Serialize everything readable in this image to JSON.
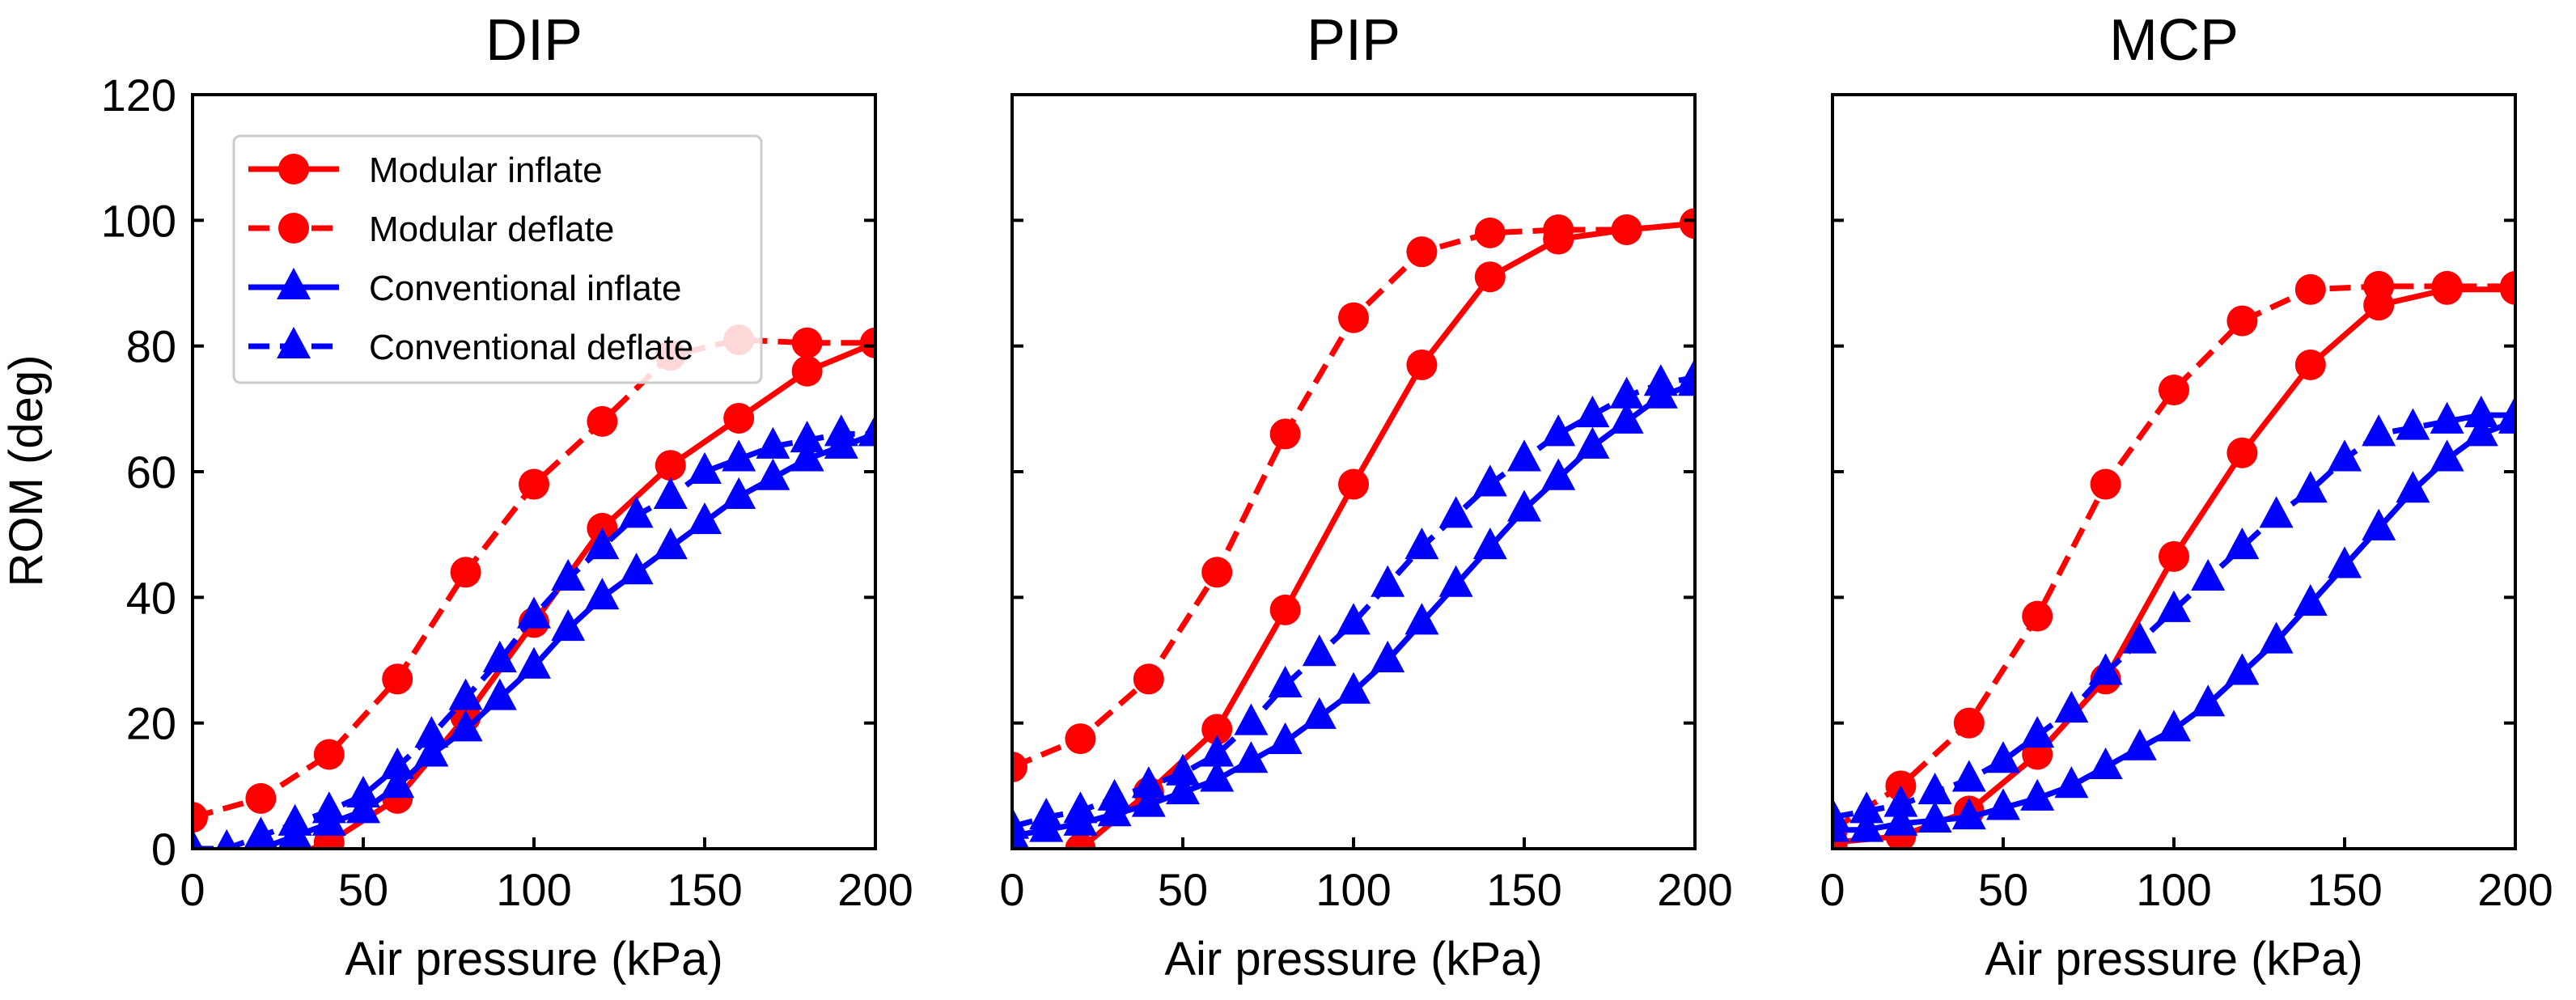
{
  "figure": {
    "ylabel": "ROM (deg)",
    "legend": {
      "placement": "upper-left of first panel",
      "entries": [
        {
          "label": "Modular inflate",
          "color": "#ff0000",
          "marker": "circle",
          "dashed": false
        },
        {
          "label": "Modular deflate",
          "color": "#ff0000",
          "marker": "circle",
          "dashed": true
        },
        {
          "label": "Conventional inflate",
          "color": "#0000ff",
          "marker": "triangle",
          "dashed": false
        },
        {
          "label": "Conventional deflate",
          "color": "#0000ff",
          "marker": "triangle",
          "dashed": true
        }
      ]
    }
  },
  "chart_data": [
    {
      "type": "line",
      "title": "DIP",
      "xlabel": "Air pressure (kPa)",
      "ylabel": "ROM (deg)",
      "xlim": [
        0,
        200
      ],
      "ylim": [
        0,
        120
      ],
      "xticks": [
        0,
        50,
        100,
        150,
        200
      ],
      "yticks": [
        0,
        20,
        40,
        60,
        80,
        100,
        120
      ],
      "grid": false,
      "legend": true,
      "series": [
        {
          "name": "Modular inflate",
          "color": "#ff0000",
          "marker": "circle",
          "dashed": false,
          "x": [
            0,
            20,
            40,
            60,
            80,
            100,
            120,
            140,
            160,
            180,
            200
          ],
          "y": [
            -2,
            -3,
            1,
            8,
            21,
            36,
            51,
            61,
            68.5,
            76,
            80.5
          ]
        },
        {
          "name": "Modular deflate",
          "color": "#ff0000",
          "marker": "circle",
          "dashed": true,
          "x": [
            0,
            20,
            40,
            60,
            80,
            100,
            120,
            140,
            160,
            180,
            200
          ],
          "y": [
            5,
            8,
            15,
            27,
            44,
            58,
            68,
            78.5,
            81,
            80.5,
            80.5
          ]
        },
        {
          "name": "Conventional inflate",
          "color": "#0000ff",
          "marker": "triangle",
          "dashed": false,
          "x": [
            0,
            10,
            20,
            30,
            40,
            50,
            60,
            70,
            80,
            90,
            100,
            110,
            120,
            130,
            140,
            150,
            160,
            170,
            180,
            190,
            200
          ],
          "y": [
            0,
            -1,
            0,
            2,
            4,
            6,
            10,
            15,
            19,
            24,
            29,
            35,
            40,
            44,
            48,
            52,
            56,
            59,
            62,
            64,
            66
          ]
        },
        {
          "name": "Conventional deflate",
          "color": "#0000ff",
          "marker": "triangle",
          "dashed": true,
          "x": [
            0,
            10,
            20,
            30,
            40,
            50,
            60,
            70,
            80,
            90,
            100,
            110,
            120,
            130,
            140,
            150,
            160,
            170,
            180,
            190,
            200
          ],
          "y": [
            0,
            0,
            2,
            4,
            6,
            8.5,
            13,
            18,
            24,
            30,
            37,
            43,
            48,
            53,
            56,
            60,
            62,
            64,
            65,
            66,
            66
          ]
        }
      ]
    },
    {
      "type": "line",
      "title": "PIP",
      "xlabel": "Air pressure (kPa)",
      "xlim": [
        0,
        200
      ],
      "ylim": [
        0,
        120
      ],
      "xticks": [
        0,
        50,
        100,
        150,
        200
      ],
      "yticks": [
        0,
        20,
        40,
        60,
        80,
        100,
        120
      ],
      "grid": false,
      "legend": false,
      "series": [
        {
          "name": "Modular inflate",
          "color": "#ff0000",
          "marker": "circle",
          "dashed": false,
          "x": [
            0,
            20,
            40,
            60,
            80,
            100,
            120,
            140,
            160,
            180,
            200
          ],
          "y": [
            -1,
            0,
            9,
            19,
            38,
            58,
            77,
            91,
            97,
            98.5,
            99.5
          ]
        },
        {
          "name": "Modular deflate",
          "color": "#ff0000",
          "marker": "circle",
          "dashed": true,
          "x": [
            0,
            20,
            40,
            60,
            80,
            100,
            120,
            140,
            160,
            180,
            200
          ],
          "y": [
            13,
            17.5,
            27,
            44,
            66,
            84.5,
            95,
            98,
            98.5,
            98.5,
            99.5
          ]
        },
        {
          "name": "Conventional inflate",
          "color": "#0000ff",
          "marker": "triangle",
          "dashed": false,
          "x": [
            0,
            10,
            20,
            30,
            40,
            50,
            60,
            70,
            80,
            90,
            100,
            110,
            120,
            130,
            140,
            150,
            160,
            170,
            180,
            190,
            200
          ],
          "y": [
            2,
            3,
            4,
            5.5,
            7,
            9,
            11,
            14,
            17,
            21,
            25,
            30,
            36,
            42,
            48,
            54,
            59,
            64,
            68,
            72,
            74
          ]
        },
        {
          "name": "Conventional deflate",
          "color": "#0000ff",
          "marker": "triangle",
          "dashed": true,
          "x": [
            0,
            10,
            20,
            30,
            40,
            50,
            60,
            70,
            80,
            90,
            100,
            110,
            120,
            130,
            140,
            150,
            160,
            170,
            180,
            190,
            200
          ],
          "y": [
            3.5,
            5,
            6,
            8,
            10,
            12,
            15,
            20,
            26,
            31,
            36,
            42,
            48,
            53,
            58,
            62,
            66,
            69,
            72,
            74,
            75
          ]
        }
      ]
    },
    {
      "type": "line",
      "title": "MCP",
      "xlabel": "Air pressure (kPa)",
      "xlim": [
        0,
        200
      ],
      "ylim": [
        0,
        120
      ],
      "xticks": [
        0,
        50,
        100,
        150,
        200
      ],
      "yticks": [
        0,
        20,
        40,
        60,
        80,
        100,
        120
      ],
      "grid": false,
      "legend": false,
      "series": [
        {
          "name": "Modular inflate",
          "color": "#ff0000",
          "marker": "circle",
          "dashed": false,
          "x": [
            0,
            20,
            40,
            60,
            80,
            100,
            120,
            140,
            160,
            180,
            200
          ],
          "y": [
            1,
            2,
            6,
            15,
            27,
            46.5,
            63,
            77,
            86.5,
            89,
            89
          ]
        },
        {
          "name": "Modular deflate",
          "color": "#ff0000",
          "marker": "circle",
          "dashed": true,
          "x": [
            0,
            20,
            40,
            60,
            80,
            100,
            120,
            140,
            160,
            180,
            200
          ],
          "y": [
            3,
            10,
            20,
            37,
            58,
            73,
            84,
            89,
            89.5,
            89.5,
            89.5
          ]
        },
        {
          "name": "Conventional inflate",
          "color": "#0000ff",
          "marker": "triangle",
          "dashed": false,
          "x": [
            0,
            10,
            20,
            30,
            40,
            50,
            60,
            70,
            80,
            90,
            100,
            110,
            120,
            130,
            140,
            150,
            160,
            170,
            180,
            190,
            200
          ],
          "y": [
            3,
            3,
            4,
            4.5,
            5,
            6.5,
            8,
            10,
            13,
            16,
            19,
            23,
            28,
            33,
            39,
            45,
            51,
            57,
            62,
            66,
            68
          ]
        },
        {
          "name": "Conventional deflate",
          "color": "#0000ff",
          "marker": "triangle",
          "dashed": true,
          "x": [
            0,
            10,
            20,
            30,
            40,
            50,
            60,
            70,
            80,
            90,
            100,
            110,
            120,
            130,
            140,
            150,
            160,
            170,
            180,
            190,
            200
          ],
          "y": [
            5,
            6,
            7,
            9,
            11,
            14,
            18,
            22,
            28,
            33,
            38,
            43,
            48,
            53,
            57,
            62,
            66,
            67,
            68,
            69,
            69
          ]
        }
      ]
    }
  ]
}
